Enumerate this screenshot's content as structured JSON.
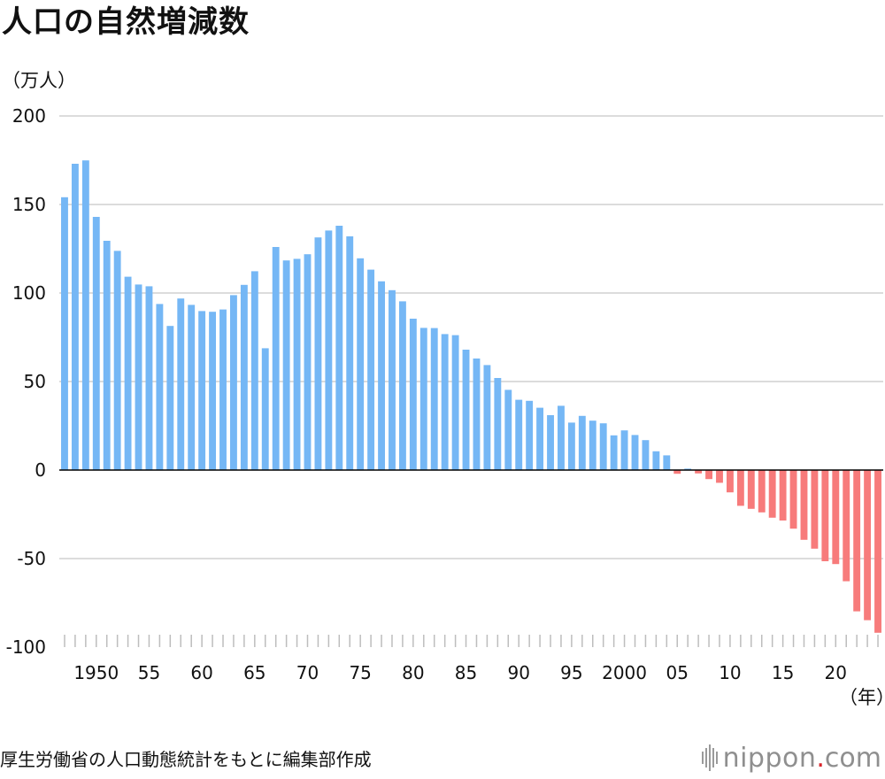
{
  "chart_data": {
    "type": "bar",
    "title": "人口の自然増減数",
    "ylabel": "（万人）",
    "xlabel": "（年）",
    "ylim": [
      -100,
      200
    ],
    "yticks": [
      200,
      150,
      100,
      50,
      0,
      -50,
      -100
    ],
    "grid": true,
    "x": [
      1947,
      1948,
      1949,
      1950,
      1951,
      1952,
      1953,
      1954,
      1955,
      1956,
      1957,
      1958,
      1959,
      1960,
      1961,
      1962,
      1963,
      1964,
      1965,
      1966,
      1967,
      1968,
      1969,
      1970,
      1971,
      1972,
      1973,
      1974,
      1975,
      1976,
      1977,
      1978,
      1979,
      1980,
      1981,
      1982,
      1983,
      1984,
      1985,
      1986,
      1987,
      1988,
      1989,
      1990,
      1991,
      1992,
      1993,
      1994,
      1995,
      1996,
      1997,
      1998,
      1999,
      2000,
      2001,
      2002,
      2003,
      2004,
      2005,
      2006,
      2007,
      2008,
      2009,
      2010,
      2011,
      2012,
      2013,
      2014,
      2015,
      2016,
      2017,
      2018,
      2019,
      2020,
      2021,
      2022,
      2023,
      2024
    ],
    "values": [
      154.1,
      173.0,
      174.9,
      143.0,
      129.5,
      123.8,
      109.2,
      104.8,
      103.8,
      93.8,
      81.4,
      96.9,
      93.3,
      89.8,
      89.4,
      90.7,
      98.8,
      104.6,
      112.3,
      68.8,
      126.0,
      118.4,
      119.3,
      121.9,
      131.4,
      135.3,
      138.0,
      132.0,
      119.6,
      113.2,
      106.6,
      101.6,
      95.3,
      85.5,
      80.3,
      80.2,
      76.8,
      76.2,
      68.0,
      63.0,
      59.3,
      52.0,
      45.3,
      39.7,
      39.1,
      35.2,
      31.0,
      36.3,
      26.8,
      30.6,
      27.9,
      26.4,
      19.6,
      22.4,
      19.8,
      16.9,
      10.6,
      8.3,
      -2.1,
      0.8,
      -1.9,
      -5.1,
      -7.2,
      -12.6,
      -20.2,
      -21.9,
      -23.9,
      -26.9,
      -28.5,
      -33.1,
      -39.4,
      -44.4,
      -51.5,
      -53.1,
      -62.8,
      -79.8,
      -84.8,
      -91.9
    ],
    "tick_labels": [
      {
        "year": 1950,
        "label": "1950"
      },
      {
        "year": 1955,
        "label": "55"
      },
      {
        "year": 1960,
        "label": "60"
      },
      {
        "year": 1965,
        "label": "65"
      },
      {
        "year": 1970,
        "label": "70"
      },
      {
        "year": 1975,
        "label": "75"
      },
      {
        "year": 1980,
        "label": "80"
      },
      {
        "year": 1985,
        "label": "85"
      },
      {
        "year": 1990,
        "label": "90"
      },
      {
        "year": 1995,
        "label": "95"
      },
      {
        "year": 2000,
        "label": "2000"
      },
      {
        "year": 2005,
        "label": "05"
      },
      {
        "year": 2010,
        "label": "10"
      },
      {
        "year": 2015,
        "label": "15"
      },
      {
        "year": 2020,
        "label": "20"
      }
    ],
    "colors": {
      "positive": "#75b7f5",
      "negative": "#f77b7b",
      "grid": "#c8c8c8",
      "zero_line": "#000000",
      "tick": "#bdbdbd"
    }
  },
  "source": "厚生労働省の人口動態統計をもとに編集部作成",
  "logo": {
    "name": "nippon",
    "dot": ".",
    "tld": "com"
  }
}
